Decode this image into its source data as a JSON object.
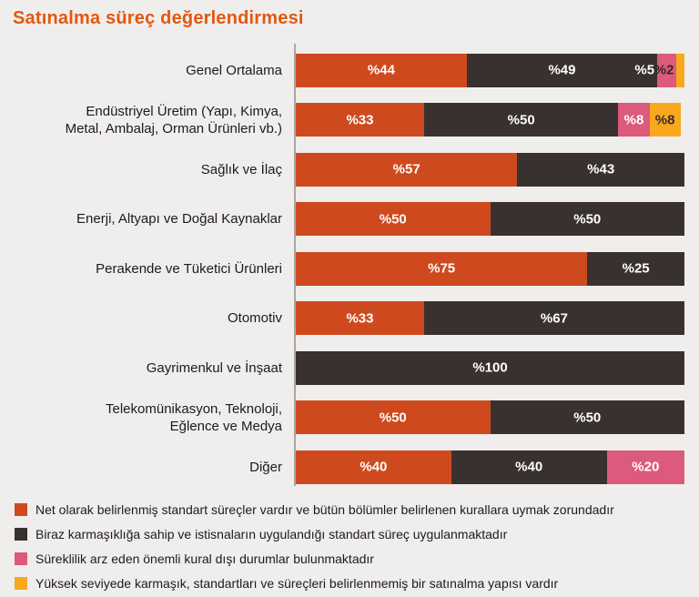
{
  "title": "Satınalma süreç değerlendirmesi",
  "colors": {
    "orange": "#CE4A1E",
    "dark": "#383130",
    "pink": "#DC5A7B",
    "yellow": "#F7A81C",
    "background": "#F0EEEC",
    "title_text": "#E4570F",
    "axis": "#A9A6A3",
    "label_text": "#1D1B1A",
    "dark_segment_label": "#332C2A"
  },
  "chart_data": {
    "type": "bar",
    "orientation": "horizontal",
    "stacked": true,
    "value_unit": "percent",
    "xlim": [
      0,
      100
    ],
    "grid": false,
    "legend_position": "bottom",
    "title": "Satınalma süreç değerlendirmesi",
    "categories": [
      "Genel Ortalama",
      "Endüstriyel Üretim (Yapı, Kimya, Metal, Ambalaj, Orman Ürünleri vb.)",
      "Sağlık ve İlaç",
      "Enerji, Altyapı ve Doğal Kaynaklar",
      "Perakende ve Tüketici Ürünleri",
      "Otomotiv",
      "Gayrimenkul ve İnşaat",
      "Telekomünikasyon, Teknoloji, Eğlence ve Medya",
      "Diğer"
    ],
    "series": [
      {
        "name": "Net olarak belirlenmiş standart süreçler vardır ve bütün bölümler belirlenen kurallara uymak zorundadır",
        "color_key": "orange",
        "values": [
          44,
          33,
          57,
          50,
          75,
          33,
          0,
          50,
          40
        ]
      },
      {
        "name": "Biraz karmaşıklığa sahip ve istisnaların uygulandığı standart süreç uygulanmaktadır",
        "color_key": "dark",
        "values": [
          49,
          50,
          43,
          50,
          25,
          67,
          100,
          50,
          40
        ]
      },
      {
        "name": "Süreklilik arz eden önemli kural dışı durumlar bulunmaktadır",
        "color_key": "pink",
        "values": [
          5,
          8,
          0,
          0,
          0,
          0,
          0,
          0,
          20
        ]
      },
      {
        "name": "Yüksek seviyede karmaşık, standartları ve süreçleri belirlenmemiş bir satınalma yapısı vardır",
        "color_key": "yellow",
        "values": [
          2,
          8,
          0,
          0,
          0,
          0,
          0,
          0,
          0
        ]
      }
    ],
    "rows": [
      {
        "category_lines": [
          "Genel Ortalama"
        ],
        "segments": [
          {
            "value": 44,
            "color_key": "orange",
            "label": "%44"
          },
          {
            "value": 49,
            "color_key": "dark",
            "label": "%49"
          },
          {
            "value": 5,
            "color_key": "pink",
            "label": "%5",
            "label_placement": "before"
          },
          {
            "value": 2,
            "color_key": "yellow",
            "label": "%2",
            "label_placement": "before",
            "label_style": "dark"
          }
        ]
      },
      {
        "category_lines": [
          "Endüstriyel Üretim (Yapı, Kimya,",
          "Metal, Ambalaj, Orman Ürünleri vb.)"
        ],
        "segments": [
          {
            "value": 33,
            "color_key": "orange",
            "label": "%33"
          },
          {
            "value": 50,
            "color_key": "dark",
            "label": "%50"
          },
          {
            "value": 8,
            "color_key": "pink",
            "label": "%8"
          },
          {
            "value": 8,
            "color_key": "yellow",
            "label": "%8",
            "label_style": "dark"
          }
        ]
      },
      {
        "category_lines": [
          "Sağlık ve İlaç"
        ],
        "segments": [
          {
            "value": 57,
            "color_key": "orange",
            "label": "%57"
          },
          {
            "value": 43,
            "color_key": "dark",
            "label": "%43"
          }
        ]
      },
      {
        "category_lines": [
          "Enerji, Altyapı ve Doğal Kaynaklar"
        ],
        "segments": [
          {
            "value": 50,
            "color_key": "orange",
            "label": "%50"
          },
          {
            "value": 50,
            "color_key": "dark",
            "label": "%50"
          }
        ]
      },
      {
        "category_lines": [
          "Perakende ve Tüketici Ürünleri"
        ],
        "segments": [
          {
            "value": 75,
            "color_key": "orange",
            "label": "%75"
          },
          {
            "value": 25,
            "color_key": "dark",
            "label": "%25"
          }
        ]
      },
      {
        "category_lines": [
          "Otomotiv"
        ],
        "segments": [
          {
            "value": 33,
            "color_key": "orange",
            "label": "%33"
          },
          {
            "value": 67,
            "color_key": "dark",
            "label": "%67"
          }
        ]
      },
      {
        "category_lines": [
          "Gayrimenkul ve İnşaat"
        ],
        "segments": [
          {
            "value": 100,
            "color_key": "dark",
            "label": "%100"
          }
        ]
      },
      {
        "category_lines": [
          "Telekomünikasyon, Teknoloji,",
          "Eğlence ve Medya"
        ],
        "segments": [
          {
            "value": 50,
            "color_key": "orange",
            "label": "%50"
          },
          {
            "value": 50,
            "color_key": "dark",
            "label": "%50"
          }
        ]
      },
      {
        "category_lines": [
          "Diğer"
        ],
        "segments": [
          {
            "value": 40,
            "color_key": "orange",
            "label": "%40"
          },
          {
            "value": 40,
            "color_key": "dark",
            "label": "%40"
          },
          {
            "value": 20,
            "color_key": "pink",
            "label": "%20"
          }
        ]
      }
    ]
  },
  "legend": {
    "items": [
      {
        "color_key": "orange",
        "label": "Net olarak belirlenmiş standart süreçler vardır ve bütün bölümler belirlenen kurallara uymak zorundadır"
      },
      {
        "color_key": "dark",
        "label": "Biraz karmaşıklığa sahip ve istisnaların uygulandığı standart süreç uygulanmaktadır"
      },
      {
        "color_key": "pink",
        "label": "Süreklilik arz eden önemli kural dışı durumlar bulunmaktadır"
      },
      {
        "color_key": "yellow",
        "label": "Yüksek seviyede karmaşık, standartları ve süreçleri belirlenmemiş bir satınalma yapısı vardır"
      }
    ]
  }
}
